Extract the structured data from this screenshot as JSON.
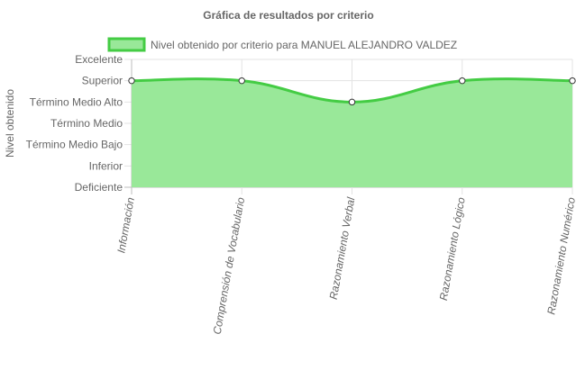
{
  "chart_data": {
    "type": "line",
    "title": "Gráfica de resultados por criterio",
    "ylabel": "Nivel obtenido",
    "xlabel": "",
    "y_levels": [
      "Deficiente",
      "Inferior",
      "Término Medio Bajo",
      "Término Medio",
      "Término Medio Alto",
      "Superior",
      "Excelente"
    ],
    "ylim": [
      0,
      6
    ],
    "categories": [
      "Información",
      "Comprensión de Vocabulario",
      "Razonamiento Verbal",
      "Razonamiento Lógico",
      "Razonamiento Numérico"
    ],
    "series": [
      {
        "name": "Nivel obtenido por criterio para MANUEL ALEJANDRO VALDEZ",
        "values": [
          5,
          5,
          4,
          5,
          5
        ],
        "line_color": "#44cc44",
        "fill_color": "#99e899"
      }
    ],
    "fill": true,
    "grid": true,
    "legend_position": "top"
  }
}
